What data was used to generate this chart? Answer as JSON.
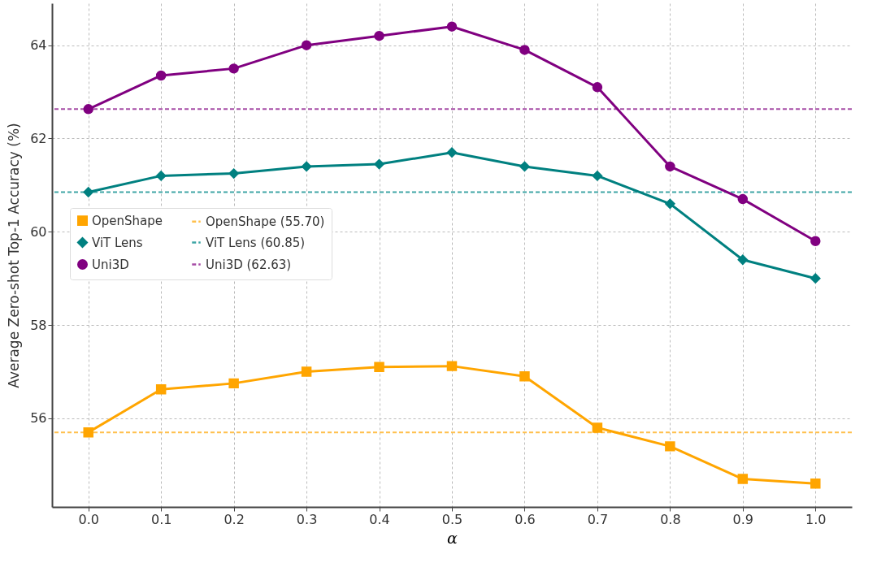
{
  "chart_data": {
    "type": "line",
    "xlabel": "α",
    "ylabel": "Average Zero-shot Top-1 Accuracy (%)",
    "x": [
      0,
      0.1,
      0.2,
      0.3,
      0.4,
      0.5,
      0.6,
      0.7,
      0.8,
      0.9,
      1.0
    ],
    "series": [
      {
        "name": "OpenShape",
        "color": "#ffa500",
        "marker": "square",
        "values": [
          55.7,
          56.62,
          56.75,
          57.0,
          57.1,
          57.12,
          56.9,
          55.8,
          55.4,
          54.7,
          54.6
        ]
      },
      {
        "name": "ViT Lens",
        "color": "#008080",
        "marker": "diamond",
        "values": [
          60.85,
          61.2,
          61.25,
          61.4,
          61.45,
          61.7,
          61.4,
          61.2,
          60.6,
          59.4,
          59.0
        ]
      },
      {
        "name": "Uni3D",
        "color": "#800080",
        "marker": "circle",
        "values": [
          62.63,
          63.35,
          63.5,
          64.0,
          64.2,
          64.4,
          63.9,
          63.1,
          61.4,
          60.7,
          59.8
        ]
      }
    ],
    "ref_lines": [
      {
        "axis": "y",
        "value": 55.7,
        "label": "OpenShape (55.70)",
        "color": "#ffc04d",
        "line_style": "dashed"
      },
      {
        "axis": "y",
        "value": 60.85,
        "label": "ViT Lens (60.85)",
        "color": "#40a6a6",
        "line_style": "dashed"
      },
      {
        "axis": "y",
        "value": 62.63,
        "label": "Uni3D (62.63)",
        "color": "#a64da6",
        "line_style": "dashed"
      }
    ],
    "xlim": [
      -0.05,
      1.05
    ],
    "ylim": [
      54.1,
      64.9
    ],
    "xticks": [
      {
        "value": 0,
        "label": "0.0"
      },
      0.1,
      0.2,
      0.3,
      0.4,
      0.5,
      0.6,
      0.7,
      0.8,
      0.9,
      {
        "value": 1,
        "label": "1.0"
      }
    ],
    "yticks": [
      56,
      58,
      60,
      62,
      64
    ],
    "grid": true,
    "legend": "left",
    "line_style": "solid"
  }
}
